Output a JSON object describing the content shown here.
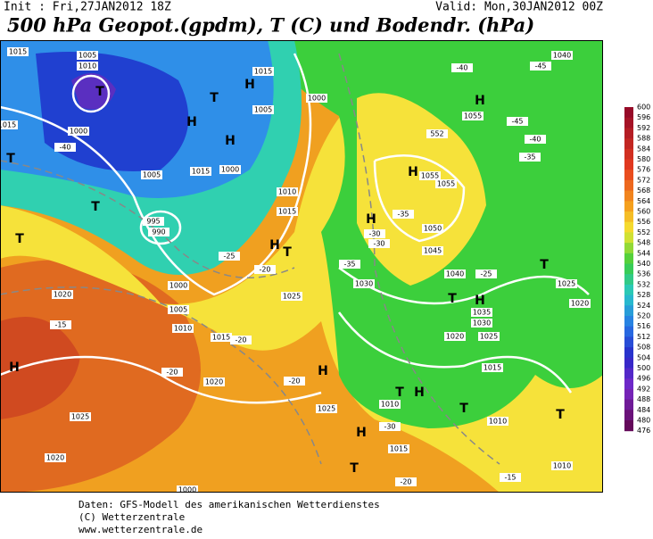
{
  "header": {
    "init": "Init : Fri,27JAN2012 18Z",
    "valid": "Valid: Mon,30JAN2012 00Z",
    "title": "500 hPa Geopot.(gpdm), T (C) und Bodendr. (hPa)"
  },
  "colorbar": {
    "labels": [
      600,
      596,
      592,
      588,
      584,
      580,
      576,
      572,
      568,
      564,
      560,
      556,
      552,
      548,
      544,
      540,
      536,
      532,
      528,
      524,
      520,
      516,
      512,
      508,
      504,
      500,
      496,
      492,
      488,
      484,
      480,
      476
    ]
  },
  "map": {
    "labels": [
      "1015",
      "1005",
      "1010",
      "T",
      "1015",
      "1000",
      "1005",
      "1000",
      "1015",
      "-40",
      "T",
      "1005",
      "1015",
      "1000",
      "995",
      "990",
      "T",
      "H",
      "H",
      "T",
      "1010",
      "1015",
      "1000",
      "1005",
      "1010",
      "1020",
      "T",
      "H",
      "1025",
      "1020",
      "1015",
      "1020",
      "1025",
      "H",
      "T",
      "H",
      "1025",
      "1030",
      "1040",
      "1035",
      "1030",
      "1020",
      "1025",
      "1015",
      "1010",
      "T",
      "H",
      "T",
      "H",
      "1015",
      "-30",
      "1010",
      "T",
      "1010",
      "-15",
      "T",
      "-20",
      "1055",
      "H",
      "-40",
      "-45",
      "1040",
      "-45",
      "-40",
      "-35",
      "H",
      "1055",
      "1055",
      "H",
      "-35",
      "1050",
      "1045",
      "-30",
      "-30",
      "552",
      "T",
      "1025",
      "1020",
      "-15",
      "-20",
      "-20",
      "-20",
      "-25",
      "-20",
      "-35",
      "-25",
      "H",
      "T",
      "H",
      "1000"
    ]
  },
  "footer": {
    "line1": "Daten: GFS-Modell des amerikanischen Wetterdienstes",
    "line2": "(C) Wetterzentrale",
    "line3": "www.wetterzentrale.de"
  }
}
